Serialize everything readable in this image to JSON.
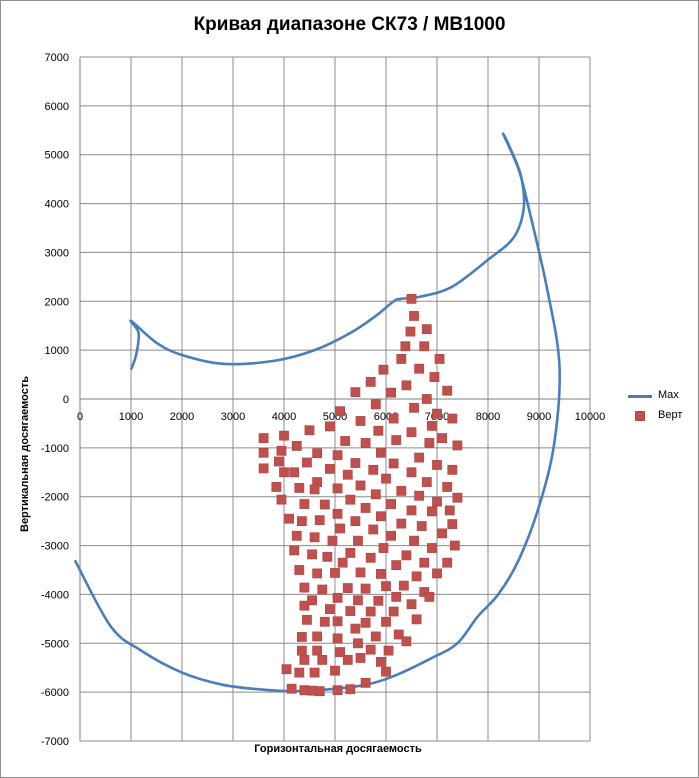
{
  "chart_data": {
    "type": "scatter",
    "title": "Кривая диапазоне СК73 / МВ1000",
    "xlabel": "Горизонтальная досягаемость",
    "ylabel": "Вертикальная досягаемость",
    "xlim": [
      0,
      10000
    ],
    "ylim": [
      -7000,
      7000
    ],
    "x_ticks": [
      "0",
      "1000",
      "2000",
      "3000",
      "4000",
      "5000",
      "6000",
      "7000",
      "8000",
      "9000",
      "10000"
    ],
    "y_ticks": [
      "7000",
      "6000",
      "5000",
      "4000",
      "3000",
      "2000",
      "1000",
      "0",
      "-1000",
      "-2000",
      "-3000",
      "-4000",
      "-5000",
      "-6000",
      "-7000"
    ],
    "grid": true,
    "legend_position": "right",
    "series": [
      {
        "name": "Max",
        "type": "line",
        "color": "#4a7ebb",
        "points": [
          [
            -100,
            -3300
          ],
          [
            600,
            -4650
          ],
          [
            1200,
            -5150
          ],
          [
            2000,
            -5600
          ],
          [
            2800,
            -5850
          ],
          [
            3600,
            -5950
          ],
          [
            4200,
            -5980
          ],
          [
            4800,
            -5950
          ],
          [
            5600,
            -5850
          ],
          [
            6200,
            -5650
          ],
          [
            6900,
            -5300
          ],
          [
            7400,
            -5000
          ],
          [
            7800,
            -4450
          ],
          [
            8200,
            -4000
          ],
          [
            8600,
            -3300
          ],
          [
            9000,
            -2200
          ],
          [
            9300,
            -900
          ],
          [
            9400,
            700
          ],
          [
            9150,
            2300
          ],
          [
            8800,
            3900
          ],
          [
            8600,
            4700
          ],
          [
            8300,
            5420
          ],
          [
            8450,
            5100
          ],
          [
            8650,
            4550
          ],
          [
            8700,
            3900
          ],
          [
            8500,
            3300
          ],
          [
            8000,
            2850
          ],
          [
            7300,
            2300
          ],
          [
            6700,
            2100
          ],
          [
            6300,
            2050
          ],
          [
            6150,
            2000
          ],
          [
            5800,
            1700
          ],
          [
            5300,
            1350
          ],
          [
            4600,
            1000
          ],
          [
            3800,
            780
          ],
          [
            2800,
            720
          ],
          [
            2000,
            900
          ],
          [
            1500,
            1150
          ],
          [
            1000,
            1600
          ],
          [
            1150,
            1350
          ],
          [
            1100,
            900
          ],
          [
            1000,
            600
          ]
        ]
      },
      {
        "name": "Верт",
        "type": "scatter",
        "color": "#c0504d",
        "points": [
          [
            6500,
            2050
          ],
          [
            6550,
            1700
          ],
          [
            6800,
            1430
          ],
          [
            6480,
            1380
          ],
          [
            6380,
            1080
          ],
          [
            6750,
            1080
          ],
          [
            7050,
            820
          ],
          [
            6300,
            820
          ],
          [
            5950,
            600
          ],
          [
            6650,
            620
          ],
          [
            5700,
            350
          ],
          [
            6950,
            450
          ],
          [
            6400,
            280
          ],
          [
            5400,
            140
          ],
          [
            6100,
            130
          ],
          [
            7200,
            170
          ],
          [
            6800,
            0
          ],
          [
            5800,
            -110
          ],
          [
            5100,
            -250
          ],
          [
            6550,
            -180
          ],
          [
            5500,
            -450
          ],
          [
            4900,
            -560
          ],
          [
            6150,
            -400
          ],
          [
            7000,
            -300
          ],
          [
            4500,
            -640
          ],
          [
            4000,
            -750
          ],
          [
            3600,
            -800
          ],
          [
            6900,
            -550
          ],
          [
            7300,
            -400
          ],
          [
            5200,
            -860
          ],
          [
            5850,
            -650
          ],
          [
            4250,
            -960
          ],
          [
            3950,
            -1060
          ],
          [
            3600,
            -1100
          ],
          [
            6500,
            -680
          ],
          [
            4650,
            -1110
          ],
          [
            5600,
            -900
          ],
          [
            6200,
            -840
          ],
          [
            7100,
            -800
          ],
          [
            5050,
            -1150
          ],
          [
            3900,
            -1280
          ],
          [
            6850,
            -900
          ],
          [
            5900,
            -1100
          ],
          [
            4450,
            -1300
          ],
          [
            7400,
            -950
          ],
          [
            5400,
            -1310
          ],
          [
            6650,
            -1200
          ],
          [
            3600,
            -1420
          ],
          [
            4900,
            -1430
          ],
          [
            6150,
            -1320
          ],
          [
            7000,
            -1350
          ],
          [
            4200,
            -1500
          ],
          [
            5750,
            -1450
          ],
          [
            4000,
            -1500
          ],
          [
            7300,
            -1450
          ],
          [
            5250,
            -1550
          ],
          [
            6500,
            -1500
          ],
          [
            4650,
            -1700
          ],
          [
            6000,
            -1630
          ],
          [
            6800,
            -1700
          ],
          [
            4300,
            -1820
          ],
          [
            3850,
            -1800
          ],
          [
            5500,
            -1770
          ],
          [
            5050,
            -1830
          ],
          [
            7200,
            -1800
          ],
          [
            4600,
            -1850
          ],
          [
            6300,
            -1880
          ],
          [
            5800,
            -1950
          ],
          [
            3950,
            -2060
          ],
          [
            6650,
            -1980
          ],
          [
            5300,
            -2060
          ],
          [
            7000,
            -2100
          ],
          [
            4400,
            -2150
          ],
          [
            7400,
            -2020
          ],
          [
            4800,
            -2160
          ],
          [
            6100,
            -2150
          ],
          [
            5600,
            -2230
          ],
          [
            6500,
            -2280
          ],
          [
            4100,
            -2450
          ],
          [
            5050,
            -2350
          ],
          [
            6900,
            -2300
          ],
          [
            4350,
            -2500
          ],
          [
            5900,
            -2400
          ],
          [
            7250,
            -2280
          ],
          [
            4700,
            -2480
          ],
          [
            5400,
            -2500
          ],
          [
            6300,
            -2550
          ],
          [
            7300,
            -2560
          ],
          [
            5100,
            -2650
          ],
          [
            6700,
            -2600
          ],
          [
            4250,
            -2800
          ],
          [
            5750,
            -2670
          ],
          [
            4600,
            -2830
          ],
          [
            7100,
            -2750
          ],
          [
            4950,
            -2900
          ],
          [
            6100,
            -2800
          ],
          [
            5450,
            -2900
          ],
          [
            6550,
            -2900
          ],
          [
            4200,
            -3100
          ],
          [
            7350,
            -3000
          ],
          [
            5300,
            -3150
          ],
          [
            6900,
            -3050
          ],
          [
            4550,
            -3180
          ],
          [
            5950,
            -3050
          ],
          [
            4850,
            -3230
          ],
          [
            6400,
            -3200
          ],
          [
            7200,
            -3350
          ],
          [
            5700,
            -3250
          ],
          [
            5150,
            -3350
          ],
          [
            6750,
            -3350
          ],
          [
            4300,
            -3500
          ],
          [
            6200,
            -3400
          ],
          [
            4650,
            -3570
          ],
          [
            5000,
            -3560
          ],
          [
            7000,
            -3570
          ],
          [
            5500,
            -3550
          ],
          [
            6600,
            -3630
          ],
          [
            5900,
            -3580
          ],
          [
            4400,
            -3860
          ],
          [
            6350,
            -3820
          ],
          [
            5250,
            -3870
          ],
          [
            4750,
            -3900
          ],
          [
            6000,
            -3830
          ],
          [
            5600,
            -3880
          ],
          [
            6750,
            -3950
          ],
          [
            6200,
            -4050
          ],
          [
            5050,
            -4070
          ],
          [
            6850,
            -4050
          ],
          [
            5450,
            -4120
          ],
          [
            4550,
            -4120
          ],
          [
            5850,
            -4130
          ],
          [
            6500,
            -4200
          ],
          [
            4900,
            -4300
          ],
          [
            4400,
            -4230
          ],
          [
            5700,
            -4350
          ],
          [
            5300,
            -4340
          ],
          [
            6150,
            -4350
          ],
          [
            6600,
            -4510
          ],
          [
            4450,
            -4520
          ],
          [
            5050,
            -4550
          ],
          [
            4800,
            -4560
          ],
          [
            5600,
            -4580
          ],
          [
            6000,
            -4560
          ],
          [
            5400,
            -4700
          ],
          [
            6250,
            -4820
          ],
          [
            4350,
            -4870
          ],
          [
            4650,
            -4860
          ],
          [
            5050,
            -4900
          ],
          [
            5800,
            -4860
          ],
          [
            6400,
            -4960
          ],
          [
            5450,
            -5000
          ],
          [
            4350,
            -5150
          ],
          [
            4650,
            -5150
          ],
          [
            5100,
            -5180
          ],
          [
            5700,
            -5130
          ],
          [
            6050,
            -5150
          ],
          [
            4750,
            -5340
          ],
          [
            5250,
            -5340
          ],
          [
            4400,
            -5340
          ],
          [
            5500,
            -5300
          ],
          [
            5900,
            -5380
          ],
          [
            4300,
            -5600
          ],
          [
            4050,
            -5530
          ],
          [
            4600,
            -5600
          ],
          [
            5000,
            -5560
          ],
          [
            6000,
            -5580
          ],
          [
            4150,
            -5930
          ],
          [
            4400,
            -5960
          ],
          [
            4700,
            -5980
          ],
          [
            5050,
            -5960
          ],
          [
            5300,
            -5940
          ],
          [
            5600,
            -5810
          ],
          [
            4550,
            -5970
          ]
        ]
      }
    ]
  }
}
